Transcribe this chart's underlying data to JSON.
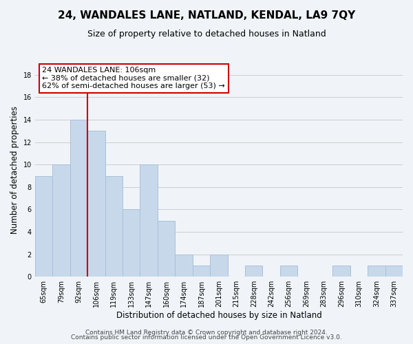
{
  "title": "24, WANDALES LANE, NATLAND, KENDAL, LA9 7QY",
  "subtitle": "Size of property relative to detached houses in Natland",
  "xlabel": "Distribution of detached houses by size in Natland",
  "ylabel": "Number of detached properties",
  "bar_labels": [
    "65sqm",
    "79sqm",
    "92sqm",
    "106sqm",
    "119sqm",
    "133sqm",
    "147sqm",
    "160sqm",
    "174sqm",
    "187sqm",
    "201sqm",
    "215sqm",
    "228sqm",
    "242sqm",
    "256sqm",
    "269sqm",
    "283sqm",
    "296sqm",
    "310sqm",
    "324sqm",
    "337sqm"
  ],
  "bar_values": [
    9,
    10,
    14,
    13,
    9,
    6,
    10,
    5,
    2,
    1,
    2,
    0,
    1,
    0,
    1,
    0,
    0,
    1,
    0,
    1,
    1
  ],
  "bar_color": "#c8d8eb",
  "bar_edge_color": "#a8c0d8",
  "vline_color": "#cc0000",
  "vline_index": 3,
  "annotation_text": "24 WANDALES LANE: 106sqm\n← 38% of detached houses are smaller (32)\n62% of semi-detached houses are larger (53) →",
  "annotation_box_edgecolor": "#cc0000",
  "annotation_box_facecolor": "#ffffff",
  "ylim": [
    0,
    19
  ],
  "yticks": [
    0,
    2,
    4,
    6,
    8,
    10,
    12,
    14,
    16,
    18
  ],
  "grid_color": "#cccccc",
  "background_color": "#f0f4f8",
  "footer_line1": "Contains HM Land Registry data © Crown copyright and database right 2024.",
  "footer_line2": "Contains public sector information licensed under the Open Government Licence v3.0.",
  "title_fontsize": 11,
  "subtitle_fontsize": 9,
  "xlabel_fontsize": 8.5,
  "ylabel_fontsize": 8.5,
  "tick_fontsize": 7,
  "annotation_fontsize": 8,
  "footer_fontsize": 6.5
}
